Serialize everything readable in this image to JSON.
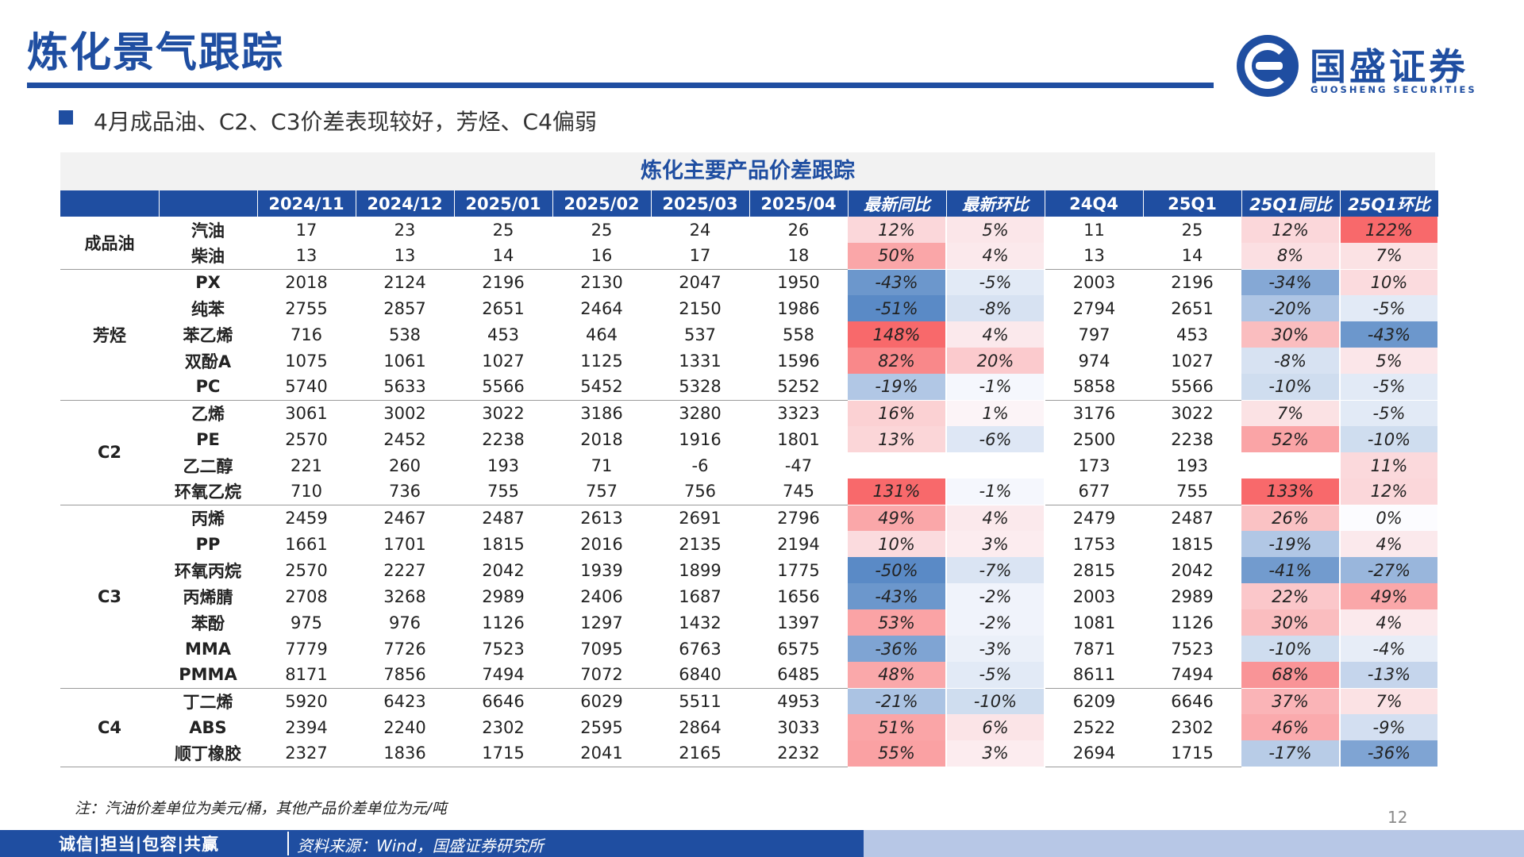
{
  "header": {
    "title": "炼化景气跟踪",
    "logo_cn": "国盛证券",
    "logo_en": "GUOSHENG SECURITIES"
  },
  "subtitle": "4月成品油、C2、C3价差表现较好，芳烃、C4偏弱",
  "table": {
    "title": "炼化主要产品价差跟踪",
    "columns": [
      "2024/11",
      "2024/12",
      "2025/01",
      "2025/02",
      "2025/03",
      "2025/04",
      "最新同比",
      "最新环比",
      "24Q4",
      "25Q1",
      "25Q1同比",
      "25Q1环比"
    ],
    "groups": [
      {
        "name": "成品油",
        "rows": [
          {
            "product": "汽油",
            "values": [
              "17",
              "23",
              "25",
              "25",
              "24",
              "26"
            ],
            "yoy": "12%",
            "mom": "5%",
            "q4": "11",
            "q1": "25",
            "q1_yoy": "12%",
            "q1_qoq": "122%"
          },
          {
            "product": "柴油",
            "values": [
              "13",
              "13",
              "14",
              "16",
              "17",
              "18"
            ],
            "yoy": "50%",
            "mom": "4%",
            "q4": "13",
            "q1": "14",
            "q1_yoy": "8%",
            "q1_qoq": "7%"
          }
        ]
      },
      {
        "name": "芳烃",
        "rows": [
          {
            "product": "PX",
            "values": [
              "2018",
              "2124",
              "2196",
              "2130",
              "2047",
              "1950"
            ],
            "yoy": "-43%",
            "mom": "-5%",
            "q4": "2003",
            "q1": "2196",
            "q1_yoy": "-34%",
            "q1_qoq": "10%"
          },
          {
            "product": "纯苯",
            "values": [
              "2755",
              "2857",
              "2651",
              "2464",
              "2150",
              "1986"
            ],
            "yoy": "-51%",
            "mom": "-8%",
            "q4": "2794",
            "q1": "2651",
            "q1_yoy": "-20%",
            "q1_qoq": "-5%"
          },
          {
            "product": "苯乙烯",
            "values": [
              "716",
              "538",
              "453",
              "464",
              "537",
              "558"
            ],
            "yoy": "148%",
            "mom": "4%",
            "q4": "797",
            "q1": "453",
            "q1_yoy": "30%",
            "q1_qoq": "-43%"
          },
          {
            "product": "双酚A",
            "values": [
              "1075",
              "1061",
              "1027",
              "1125",
              "1331",
              "1596"
            ],
            "yoy": "82%",
            "mom": "20%",
            "q4": "974",
            "q1": "1027",
            "q1_yoy": "-8%",
            "q1_qoq": "5%"
          },
          {
            "product": "PC",
            "values": [
              "5740",
              "5633",
              "5566",
              "5452",
              "5328",
              "5252"
            ],
            "yoy": "-19%",
            "mom": "-1%",
            "q4": "5858",
            "q1": "5566",
            "q1_yoy": "-10%",
            "q1_qoq": "-5%"
          }
        ]
      },
      {
        "name": "C2",
        "rows": [
          {
            "product": "乙烯",
            "values": [
              "3061",
              "3002",
              "3022",
              "3186",
              "3280",
              "3323"
            ],
            "yoy": "16%",
            "mom": "1%",
            "q4": "3176",
            "q1": "3022",
            "q1_yoy": "7%",
            "q1_qoq": "-5%"
          },
          {
            "product": "PE",
            "values": [
              "2570",
              "2452",
              "2238",
              "2018",
              "1916",
              "1801"
            ],
            "yoy": "13%",
            "mom": "-6%",
            "q4": "2500",
            "q1": "2238",
            "q1_yoy": "52%",
            "q1_qoq": "-10%"
          },
          {
            "product": "乙二醇",
            "values": [
              "221",
              "260",
              "193",
              "71",
              "-6",
              "-47"
            ],
            "yoy": "",
            "mom": "",
            "q4": "173",
            "q1": "193",
            "q1_yoy": "",
            "q1_qoq": "11%"
          },
          {
            "product": "环氧乙烷",
            "values": [
              "710",
              "736",
              "755",
              "757",
              "756",
              "745"
            ],
            "yoy": "131%",
            "mom": "-1%",
            "q4": "677",
            "q1": "755",
            "q1_yoy": "133%",
            "q1_qoq": "12%"
          }
        ]
      },
      {
        "name": "C3",
        "rows": [
          {
            "product": "丙烯",
            "values": [
              "2459",
              "2467",
              "2487",
              "2613",
              "2691",
              "2796"
            ],
            "yoy": "49%",
            "mom": "4%",
            "q4": "2479",
            "q1": "2487",
            "q1_yoy": "26%",
            "q1_qoq": "0%"
          },
          {
            "product": "PP",
            "values": [
              "1661",
              "1701",
              "1815",
              "2016",
              "2135",
              "2194"
            ],
            "yoy": "10%",
            "mom": "3%",
            "q4": "1753",
            "q1": "1815",
            "q1_yoy": "-19%",
            "q1_qoq": "4%"
          },
          {
            "product": "环氧丙烷",
            "values": [
              "2570",
              "2227",
              "2042",
              "1939",
              "1899",
              "1775"
            ],
            "yoy": "-50%",
            "mom": "-7%",
            "q4": "2815",
            "q1": "2042",
            "q1_yoy": "-41%",
            "q1_qoq": "-27%"
          },
          {
            "product": "丙烯腈",
            "values": [
              "2708",
              "3268",
              "2989",
              "2406",
              "1687",
              "1656"
            ],
            "yoy": "-43%",
            "mom": "-2%",
            "q4": "2003",
            "q1": "2989",
            "q1_yoy": "22%",
            "q1_qoq": "49%"
          },
          {
            "product": "苯酚",
            "values": [
              "975",
              "976",
              "1126",
              "1297",
              "1432",
              "1397"
            ],
            "yoy": "53%",
            "mom": "-2%",
            "q4": "1081",
            "q1": "1126",
            "q1_yoy": "30%",
            "q1_qoq": "4%"
          },
          {
            "product": "MMA",
            "values": [
              "7779",
              "7726",
              "7523",
              "7095",
              "6763",
              "6575"
            ],
            "yoy": "-36%",
            "mom": "-3%",
            "q4": "7871",
            "q1": "7523",
            "q1_yoy": "-10%",
            "q1_qoq": "-4%"
          },
          {
            "product": "PMMA",
            "values": [
              "8171",
              "7856",
              "7494",
              "7072",
              "6840",
              "6485"
            ],
            "yoy": "48%",
            "mom": "-5%",
            "q4": "8611",
            "q1": "7494",
            "q1_yoy": "68%",
            "q1_qoq": "-13%"
          }
        ]
      },
      {
        "name": "C4",
        "rows": [
          {
            "product": "丁二烯",
            "values": [
              "5920",
              "6423",
              "6646",
              "6029",
              "5511",
              "4953"
            ],
            "yoy": "-21%",
            "mom": "-10%",
            "q4": "6209",
            "q1": "6646",
            "q1_yoy": "37%",
            "q1_qoq": "7%"
          },
          {
            "product": "ABS",
            "values": [
              "2394",
              "2240",
              "2302",
              "2595",
              "2864",
              "3033"
            ],
            "yoy": "51%",
            "mom": "6%",
            "q4": "2522",
            "q1": "2302",
            "q1_yoy": "46%",
            "q1_qoq": "-9%"
          },
          {
            "product": "顺丁橡胶",
            "values": [
              "2327",
              "1836",
              "1715",
              "2041",
              "2165",
              "2232"
            ],
            "yoy": "55%",
            "mom": "3%",
            "q4": "2694",
            "q1": "1715",
            "q1_yoy": "-17%",
            "q1_qoq": "-36%"
          }
        ]
      }
    ]
  },
  "note": "注：汽油价差单位为美元/桶，其他产品价差单位为元/吨",
  "page_number": "12",
  "footer": {
    "motto": "诚信|担当|包容|共赢",
    "source": "资料来源：Wind，国盛证券研究所"
  },
  "colors": {
    "brand": "#1f4ea1",
    "positive_max": "#f8696b",
    "negative_max": "#5a8ac6",
    "neutral": "#fcfcff"
  }
}
